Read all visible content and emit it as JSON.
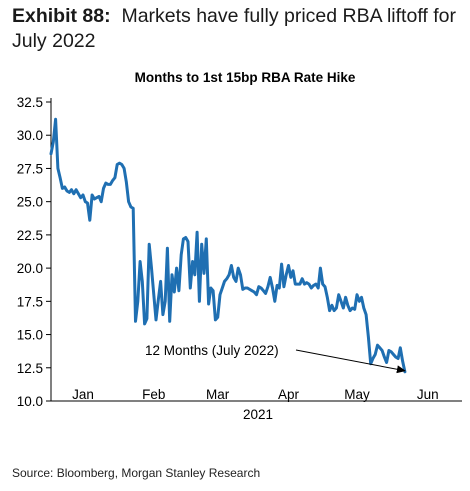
{
  "exhibit": {
    "number": "Exhibit 88:",
    "title": "Markets have fully priced RBA liftoff for July 2022"
  },
  "source": "Source: Bloomberg, Morgan Stanley Research",
  "colors": {
    "line": "#1f6fb2",
    "text": "#000000",
    "annotation": "#000000"
  },
  "chart_data": {
    "type": "line",
    "title": "Months to 1st 15bp RBA Rate Hike",
    "xlabel": "2021",
    "ylabel": "",
    "ylim": [
      10.0,
      32.5
    ],
    "yticks": [
      "10.0",
      "12.5",
      "15.0",
      "17.5",
      "20.0",
      "22.5",
      "25.0",
      "27.5",
      "30.0",
      "32.5"
    ],
    "x_range": [
      "2021-01-01",
      "2021-06-30"
    ],
    "xticks": [
      {
        "label": "Jan",
        "date": "2021-01-15"
      },
      {
        "label": "Feb",
        "date": "2021-02-15"
      },
      {
        "label": "Mar",
        "date": "2021-03-15"
      },
      {
        "label": "Apr",
        "date": "2021-04-15"
      },
      {
        "label": "May",
        "date": "2021-05-15"
      },
      {
        "label": "Jun",
        "date": "2021-06-15"
      }
    ],
    "grid": false,
    "series": [
      {
        "name": "",
        "points": [
          [
            "2021-01-01",
            28.6
          ],
          [
            "2021-01-02",
            29.5
          ],
          [
            "2021-01-03",
            31.2
          ],
          [
            "2021-01-04",
            27.5
          ],
          [
            "2021-01-05",
            26.8
          ],
          [
            "2021-01-06",
            26.0
          ],
          [
            "2021-01-07",
            26.1
          ],
          [
            "2021-01-08",
            25.8
          ],
          [
            "2021-01-09",
            25.7
          ],
          [
            "2021-01-10",
            25.9
          ],
          [
            "2021-01-11",
            25.6
          ],
          [
            "2021-01-12",
            25.9
          ],
          [
            "2021-01-13",
            25.6
          ],
          [
            "2021-01-14",
            25.3
          ],
          [
            "2021-01-15",
            25.5
          ],
          [
            "2021-01-16",
            25.0
          ],
          [
            "2021-01-17",
            24.9
          ],
          [
            "2021-01-18",
            23.6
          ],
          [
            "2021-01-19",
            25.5
          ],
          [
            "2021-01-20",
            25.2
          ],
          [
            "2021-01-21",
            25.3
          ],
          [
            "2021-01-22",
            25.4
          ],
          [
            "2021-01-23",
            25.0
          ],
          [
            "2021-01-24",
            26.0
          ],
          [
            "2021-01-25",
            26.4
          ],
          [
            "2021-01-26",
            26.3
          ],
          [
            "2021-01-27",
            26.3
          ],
          [
            "2021-01-28",
            26.6
          ],
          [
            "2021-01-29",
            26.8
          ],
          [
            "2021-01-30",
            27.8
          ],
          [
            "2021-01-31",
            27.9
          ],
          [
            "2021-02-01",
            27.8
          ],
          [
            "2021-02-02",
            27.5
          ],
          [
            "2021-02-03",
            26.5
          ],
          [
            "2021-02-04",
            25.0
          ],
          [
            "2021-02-05",
            24.6
          ],
          [
            "2021-02-06",
            24.5
          ],
          [
            "2021-02-07",
            16.0
          ],
          [
            "2021-02-08",
            17.5
          ],
          [
            "2021-02-09",
            20.5
          ],
          [
            "2021-02-10",
            19.0
          ],
          [
            "2021-02-11",
            15.8
          ],
          [
            "2021-02-12",
            16.2
          ],
          [
            "2021-02-13",
            21.8
          ],
          [
            "2021-02-14",
            20.0
          ],
          [
            "2021-02-15",
            18.0
          ],
          [
            "2021-02-16",
            16.1
          ],
          [
            "2021-02-17",
            17.6
          ],
          [
            "2021-02-18",
            19.0
          ],
          [
            "2021-02-19",
            16.5
          ],
          [
            "2021-02-20",
            17.5
          ],
          [
            "2021-02-21",
            21.5
          ],
          [
            "2021-02-22",
            16.0
          ],
          [
            "2021-02-23",
            19.5
          ],
          [
            "2021-02-24",
            18.2
          ],
          [
            "2021-02-25",
            20.0
          ],
          [
            "2021-02-26",
            18.3
          ],
          [
            "2021-02-27",
            21.0
          ],
          [
            "2021-02-28",
            22.2
          ],
          [
            "2021-03-01",
            22.3
          ],
          [
            "2021-03-02",
            22.0
          ],
          [
            "2021-03-03",
            18.5
          ],
          [
            "2021-03-04",
            20.5
          ],
          [
            "2021-03-05",
            19.5
          ],
          [
            "2021-03-06",
            22.7
          ],
          [
            "2021-03-07",
            17.5
          ],
          [
            "2021-03-08",
            21.8
          ],
          [
            "2021-03-09",
            19.6
          ],
          [
            "2021-03-10",
            22.2
          ],
          [
            "2021-03-11",
            17.3
          ],
          [
            "2021-03-12",
            18.5
          ],
          [
            "2021-03-13",
            18.3
          ],
          [
            "2021-03-14",
            16.1
          ],
          [
            "2021-03-15",
            16.3
          ],
          [
            "2021-03-16",
            18.0
          ],
          [
            "2021-03-17",
            18.5
          ],
          [
            "2021-03-18",
            19.0
          ],
          [
            "2021-03-19",
            19.2
          ],
          [
            "2021-03-20",
            19.5
          ],
          [
            "2021-03-21",
            20.2
          ],
          [
            "2021-03-22",
            19.3
          ],
          [
            "2021-03-23",
            19.0
          ],
          [
            "2021-03-24",
            20.0
          ],
          [
            "2021-03-25",
            19.5
          ],
          [
            "2021-03-26",
            18.4
          ],
          [
            "2021-03-27",
            18.5
          ],
          [
            "2021-03-28",
            18.5
          ],
          [
            "2021-03-29",
            18.4
          ],
          [
            "2021-03-30",
            18.3
          ],
          [
            "2021-03-31",
            18.2
          ],
          [
            "2021-04-01",
            18.0
          ],
          [
            "2021-04-02",
            18.6
          ],
          [
            "2021-04-03",
            18.5
          ],
          [
            "2021-04-04",
            18.3
          ],
          [
            "2021-04-05",
            18.1
          ],
          [
            "2021-04-06",
            18.6
          ],
          [
            "2021-04-07",
            19.3
          ],
          [
            "2021-04-08",
            18.5
          ],
          [
            "2021-04-09",
            17.5
          ],
          [
            "2021-04-10",
            18.7
          ],
          [
            "2021-04-11",
            18.5
          ],
          [
            "2021-04-12",
            20.3
          ],
          [
            "2021-04-13",
            18.6
          ],
          [
            "2021-04-14",
            19.5
          ],
          [
            "2021-04-15",
            20.2
          ],
          [
            "2021-04-16",
            19.3
          ],
          [
            "2021-04-17",
            19.8
          ],
          [
            "2021-04-18",
            18.8
          ],
          [
            "2021-04-19",
            18.8
          ],
          [
            "2021-04-20",
            18.8
          ],
          [
            "2021-04-21",
            19.2
          ],
          [
            "2021-04-22",
            18.8
          ],
          [
            "2021-04-23",
            18.9
          ],
          [
            "2021-04-24",
            18.8
          ],
          [
            "2021-04-25",
            18.5
          ],
          [
            "2021-04-26",
            18.7
          ],
          [
            "2021-04-27",
            18.8
          ],
          [
            "2021-04-28",
            18.5
          ],
          [
            "2021-04-29",
            20.0
          ],
          [
            "2021-04-30",
            18.8
          ],
          [
            "2021-05-01",
            18.6
          ],
          [
            "2021-05-02",
            17.8
          ],
          [
            "2021-05-03",
            16.8
          ],
          [
            "2021-05-04",
            17.2
          ],
          [
            "2021-05-05",
            16.8
          ],
          [
            "2021-05-06",
            17.0
          ],
          [
            "2021-05-07",
            18.0
          ],
          [
            "2021-05-08",
            17.5
          ],
          [
            "2021-05-09",
            17.0
          ],
          [
            "2021-05-10",
            17.8
          ],
          [
            "2021-05-11",
            17.2
          ],
          [
            "2021-05-12",
            16.8
          ],
          [
            "2021-05-13",
            17.0
          ],
          [
            "2021-05-14",
            16.9
          ],
          [
            "2021-05-15",
            18.0
          ],
          [
            "2021-05-16",
            17.5
          ],
          [
            "2021-05-17",
            17.8
          ],
          [
            "2021-05-18",
            17.0
          ],
          [
            "2021-05-19",
            16.5
          ],
          [
            "2021-05-20",
            14.8
          ],
          [
            "2021-05-21",
            12.8
          ],
          [
            "2021-05-22",
            13.2
          ],
          [
            "2021-05-23",
            13.5
          ],
          [
            "2021-05-24",
            14.2
          ],
          [
            "2021-05-25",
            14.0
          ],
          [
            "2021-05-26",
            13.8
          ],
          [
            "2021-05-27",
            13.3
          ],
          [
            "2021-05-28",
            12.9
          ],
          [
            "2021-05-29",
            13.8
          ],
          [
            "2021-05-30",
            13.7
          ],
          [
            "2021-05-31",
            13.5
          ],
          [
            "2021-06-01",
            13.3
          ],
          [
            "2021-06-02",
            13.2
          ],
          [
            "2021-06-03",
            14.0
          ],
          [
            "2021-06-04",
            13.0
          ],
          [
            "2021-06-05",
            12.2
          ]
        ]
      }
    ],
    "annotations": [
      {
        "text": "12 Months (July 2022)",
        "arrow_to": [
          "2021-06-05",
          12.2
        ]
      }
    ]
  }
}
